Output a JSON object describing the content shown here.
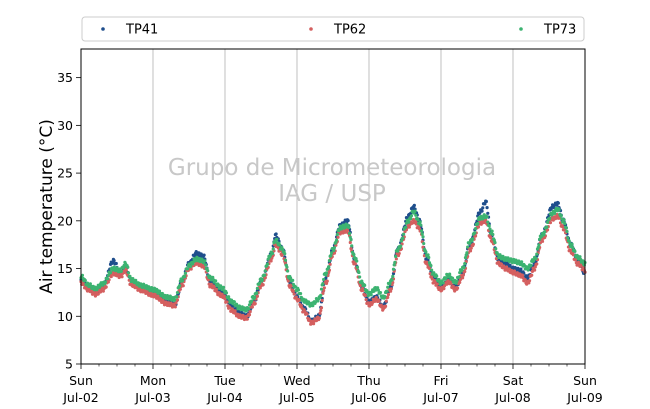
{
  "chart_data": {
    "type": "scatter",
    "title": "",
    "xlabel": "",
    "ylabel": "Air temperature (°C)",
    "ylim": [
      5,
      38
    ],
    "yticks": [
      5,
      10,
      15,
      20,
      25,
      30,
      35
    ],
    "xlim": [
      0,
      7
    ],
    "xticks": [
      {
        "x": 0,
        "day": "Sun",
        "date": "Jul-02"
      },
      {
        "x": 1,
        "day": "Mon",
        "date": "Jul-03"
      },
      {
        "x": 2,
        "day": "Tue",
        "date": "Jul-04"
      },
      {
        "x": 3,
        "day": "Wed",
        "date": "Jul-05"
      },
      {
        "x": 4,
        "day": "Thu",
        "date": "Jul-06"
      },
      {
        "x": 5,
        "day": "Fri",
        "date": "Jul-07"
      },
      {
        "x": 6,
        "day": "Sat",
        "date": "Jul-08"
      },
      {
        "x": 7,
        "day": "Sun",
        "date": "Jul-09"
      }
    ],
    "grid": "vertical",
    "legend_position": "top",
    "watermark": [
      "Grupo de Micrometeorologia",
      "IAG / USP"
    ],
    "series": [
      {
        "name": "TP41",
        "color": "#1f4e8c",
        "points": [
          [
            0,
            13.8
          ],
          [
            0.1,
            12.9
          ],
          [
            0.2,
            12.5
          ],
          [
            0.3,
            13.0
          ],
          [
            0.45,
            15.8
          ],
          [
            0.55,
            14.5
          ],
          [
            0.62,
            15.2
          ],
          [
            0.7,
            13.5
          ],
          [
            0.85,
            13.0
          ],
          [
            1.0,
            12.5
          ],
          [
            1.2,
            11.4
          ],
          [
            1.3,
            11.2
          ],
          [
            1.4,
            13.5
          ],
          [
            1.5,
            15.5
          ],
          [
            1.6,
            16.6
          ],
          [
            1.7,
            16.3
          ],
          [
            1.8,
            13.5
          ],
          [
            1.95,
            12.5
          ],
          [
            2.1,
            11.0
          ],
          [
            2.2,
            10.3
          ],
          [
            2.3,
            10.0
          ],
          [
            2.4,
            11.5
          ],
          [
            2.5,
            13.5
          ],
          [
            2.65,
            16.5
          ],
          [
            2.7,
            18.5
          ],
          [
            2.8,
            17.0
          ],
          [
            2.9,
            13.5
          ],
          [
            3.0,
            12.0
          ],
          [
            3.1,
            10.8
          ],
          [
            3.2,
            9.5
          ],
          [
            3.3,
            10.0
          ],
          [
            3.4,
            14.0
          ],
          [
            3.5,
            17.0
          ],
          [
            3.6,
            19.5
          ],
          [
            3.7,
            20.0
          ],
          [
            3.8,
            16.0
          ],
          [
            3.9,
            13.0
          ],
          [
            4.0,
            11.5
          ],
          [
            4.1,
            12.0
          ],
          [
            4.2,
            11.0
          ],
          [
            4.3,
            13.0
          ],
          [
            4.4,
            17.0
          ],
          [
            4.55,
            20.5
          ],
          [
            4.62,
            21.5
          ],
          [
            4.7,
            20.0
          ],
          [
            4.8,
            16.0
          ],
          [
            4.9,
            14.0
          ],
          [
            5.0,
            13.0
          ],
          [
            5.1,
            14.0
          ],
          [
            5.2,
            13.0
          ],
          [
            5.3,
            14.5
          ],
          [
            5.4,
            17.5
          ],
          [
            5.55,
            21.0
          ],
          [
            5.62,
            22.0
          ],
          [
            5.7,
            18.5
          ],
          [
            5.8,
            16.0
          ],
          [
            5.9,
            15.5
          ],
          [
            6.0,
            15.0
          ],
          [
            6.1,
            14.8
          ],
          [
            6.2,
            14.0
          ],
          [
            6.3,
            15.5
          ],
          [
            6.4,
            18.5
          ],
          [
            6.55,
            21.5
          ],
          [
            6.62,
            21.8
          ],
          [
            6.7,
            20.0
          ],
          [
            6.8,
            17.5
          ],
          [
            6.9,
            16.0
          ],
          [
            7.0,
            14.5
          ]
        ]
      },
      {
        "name": "TP62",
        "color": "#d45f5f",
        "points": [
          [
            0,
            13.5
          ],
          [
            0.1,
            12.8
          ],
          [
            0.2,
            12.3
          ],
          [
            0.3,
            12.8
          ],
          [
            0.45,
            14.5
          ],
          [
            0.55,
            14.2
          ],
          [
            0.62,
            14.8
          ],
          [
            0.7,
            13.3
          ],
          [
            0.85,
            12.7
          ],
          [
            1.0,
            12.2
          ],
          [
            1.2,
            11.3
          ],
          [
            1.3,
            11.1
          ],
          [
            1.4,
            13.2
          ],
          [
            1.5,
            15.0
          ],
          [
            1.6,
            15.6
          ],
          [
            1.7,
            15.3
          ],
          [
            1.8,
            13.2
          ],
          [
            1.95,
            12.2
          ],
          [
            2.1,
            10.6
          ],
          [
            2.2,
            10.0
          ],
          [
            2.3,
            9.8
          ],
          [
            2.4,
            11.3
          ],
          [
            2.5,
            13.2
          ],
          [
            2.65,
            16.0
          ],
          [
            2.7,
            17.5
          ],
          [
            2.8,
            16.5
          ],
          [
            2.9,
            13.2
          ],
          [
            3.0,
            11.8
          ],
          [
            3.1,
            10.5
          ],
          [
            3.2,
            9.3
          ],
          [
            3.3,
            9.8
          ],
          [
            3.4,
            13.5
          ],
          [
            3.5,
            16.5
          ],
          [
            3.6,
            18.8
          ],
          [
            3.7,
            19.0
          ],
          [
            3.8,
            15.5
          ],
          [
            3.9,
            12.8
          ],
          [
            4.0,
            11.2
          ],
          [
            4.1,
            11.8
          ],
          [
            4.2,
            10.8
          ],
          [
            4.3,
            12.8
          ],
          [
            4.4,
            16.5
          ],
          [
            4.55,
            19.5
          ],
          [
            4.62,
            20.0
          ],
          [
            4.7,
            19.2
          ],
          [
            4.8,
            15.5
          ],
          [
            4.9,
            13.6
          ],
          [
            5.0,
            12.8
          ],
          [
            5.1,
            13.6
          ],
          [
            5.2,
            12.8
          ],
          [
            5.3,
            14.2
          ],
          [
            5.4,
            17.0
          ],
          [
            5.55,
            19.8
          ],
          [
            5.62,
            20.0
          ],
          [
            5.7,
            18.0
          ],
          [
            5.8,
            15.5
          ],
          [
            5.9,
            15.0
          ],
          [
            6.0,
            14.6
          ],
          [
            6.1,
            14.3
          ],
          [
            6.2,
            13.5
          ],
          [
            6.3,
            15.0
          ],
          [
            6.4,
            18.0
          ],
          [
            6.55,
            20.2
          ],
          [
            6.62,
            20.5
          ],
          [
            6.7,
            19.2
          ],
          [
            6.8,
            16.8
          ],
          [
            6.9,
            15.5
          ],
          [
            7.0,
            14.8
          ]
        ]
      },
      {
        "name": "TP73",
        "color": "#3cb371",
        "points": [
          [
            0,
            14.2
          ],
          [
            0.1,
            13.3
          ],
          [
            0.2,
            12.9
          ],
          [
            0.3,
            13.4
          ],
          [
            0.45,
            15.0
          ],
          [
            0.55,
            14.8
          ],
          [
            0.62,
            15.5
          ],
          [
            0.7,
            13.8
          ],
          [
            0.85,
            13.2
          ],
          [
            1.0,
            12.8
          ],
          [
            1.2,
            12.0
          ],
          [
            1.3,
            11.8
          ],
          [
            1.4,
            13.8
          ],
          [
            1.5,
            15.3
          ],
          [
            1.6,
            16.0
          ],
          [
            1.7,
            15.8
          ],
          [
            1.8,
            14.0
          ],
          [
            1.95,
            13.0
          ],
          [
            2.1,
            11.5
          ],
          [
            2.2,
            10.9
          ],
          [
            2.3,
            10.7
          ],
          [
            2.4,
            12.0
          ],
          [
            2.5,
            13.8
          ],
          [
            2.65,
            16.6
          ],
          [
            2.7,
            18.0
          ],
          [
            2.8,
            17.0
          ],
          [
            2.9,
            14.0
          ],
          [
            3.0,
            12.8
          ],
          [
            3.1,
            11.6
          ],
          [
            3.2,
            11.2
          ],
          [
            3.3,
            11.8
          ],
          [
            3.4,
            14.5
          ],
          [
            3.5,
            17.0
          ],
          [
            3.6,
            19.3
          ],
          [
            3.7,
            19.5
          ],
          [
            3.8,
            16.2
          ],
          [
            3.9,
            13.5
          ],
          [
            4.0,
            12.3
          ],
          [
            4.1,
            12.9
          ],
          [
            4.2,
            12.0
          ],
          [
            4.3,
            13.6
          ],
          [
            4.4,
            17.0
          ],
          [
            4.55,
            20.0
          ],
          [
            4.62,
            21.0
          ],
          [
            4.7,
            19.8
          ],
          [
            4.8,
            16.5
          ],
          [
            4.9,
            14.4
          ],
          [
            5.0,
            13.5
          ],
          [
            5.1,
            14.3
          ],
          [
            5.2,
            13.6
          ],
          [
            5.3,
            15.0
          ],
          [
            5.4,
            17.8
          ],
          [
            5.55,
            20.3
          ],
          [
            5.62,
            20.5
          ],
          [
            5.7,
            18.8
          ],
          [
            5.8,
            16.3
          ],
          [
            5.9,
            16.0
          ],
          [
            6.0,
            15.8
          ],
          [
            6.1,
            15.6
          ],
          [
            6.2,
            15.0
          ],
          [
            6.3,
            16.0
          ],
          [
            6.4,
            18.5
          ],
          [
            6.55,
            20.8
          ],
          [
            6.62,
            21.2
          ],
          [
            6.7,
            20.0
          ],
          [
            6.8,
            17.5
          ],
          [
            6.9,
            16.2
          ],
          [
            7.0,
            15.5
          ]
        ]
      }
    ]
  }
}
